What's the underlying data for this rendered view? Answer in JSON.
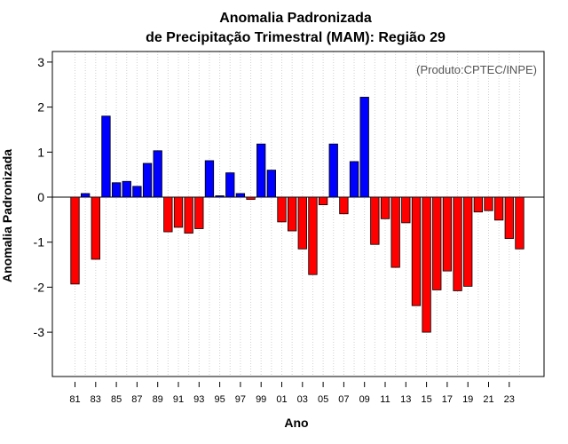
{
  "chart_data": {
    "type": "bar",
    "title": "Anomalia Padronizada",
    "subtitle": "de Precipitação Trimestral (MAM): Região 29",
    "xlabel": "Ano",
    "ylabel": "Anomalia Padronizada",
    "annotation": "(Produto:CPTEC/INPE)",
    "ylim": [
      -4,
      3.3
    ],
    "yticks": [
      -3,
      -2,
      -1,
      0,
      1,
      2,
      3
    ],
    "xtick_labels": [
      "81",
      "83",
      "85",
      "87",
      "89",
      "91",
      "93",
      "95",
      "97",
      "99",
      "01",
      "03",
      "05",
      "07",
      "09",
      "11",
      "13",
      "15",
      "17",
      "19",
      "21",
      "23"
    ],
    "categories": [
      "1981",
      "1982",
      "1983",
      "1984",
      "1985",
      "1986",
      "1987",
      "1988",
      "1989",
      "1990",
      "1991",
      "1992",
      "1993",
      "1994",
      "1995",
      "1996",
      "1997",
      "1998",
      "1999",
      "2000",
      "2001",
      "2002",
      "2003",
      "2004",
      "2005",
      "2006",
      "2007",
      "2008",
      "2009",
      "2010",
      "2011",
      "2012",
      "2013",
      "2014",
      "2015",
      "2016",
      "2017",
      "2018",
      "2019",
      "2020",
      "2021",
      "2022",
      "2023",
      "2024"
    ],
    "values": [
      -1.93,
      0.08,
      -1.38,
      1.8,
      0.32,
      0.35,
      0.24,
      0.75,
      1.03,
      -0.77,
      -0.67,
      -0.8,
      -0.7,
      0.81,
      0.03,
      0.54,
      0.08,
      -0.05,
      1.18,
      0.6,
      -0.55,
      -0.75,
      -1.15,
      -1.72,
      -0.17,
      1.18,
      -0.37,
      0.79,
      2.22,
      -1.05,
      -0.48,
      -1.56,
      -0.57,
      -2.41,
      -3.0,
      -2.06,
      -1.64,
      -2.08,
      -1.98,
      -0.33,
      -0.3,
      -0.51,
      -0.92,
      -1.15
    ],
    "colors": {
      "positive": "#0000ff",
      "negative": "#ff0000"
    },
    "grid": true
  }
}
